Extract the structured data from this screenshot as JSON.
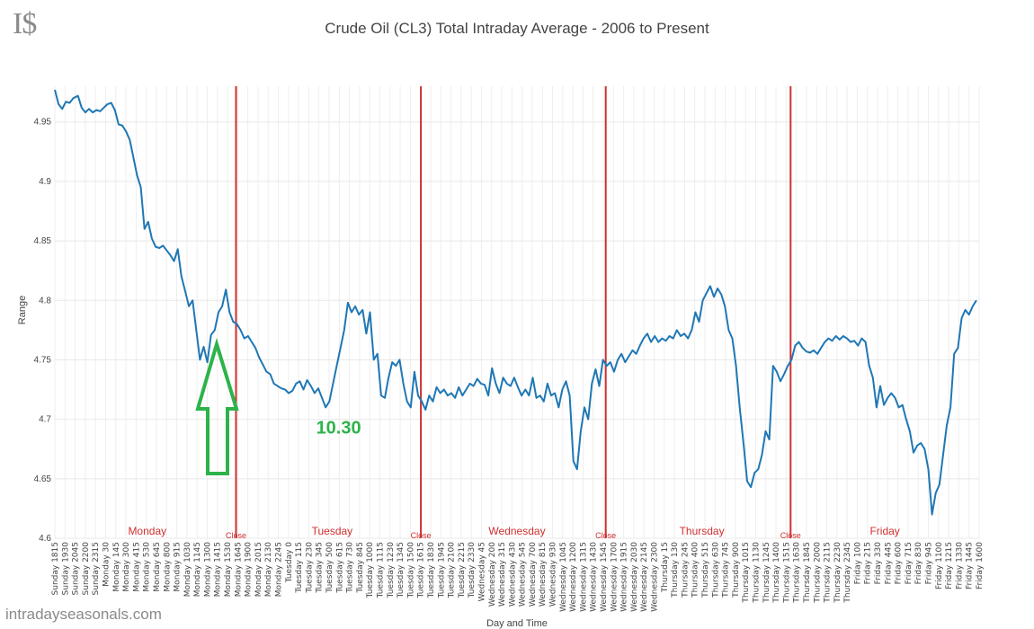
{
  "logo": "I$",
  "site": "intradayseasonals.com",
  "chart_data": {
    "type": "line",
    "title": "Crude Oil (CL3) Total Intraday Average - 2006 to Present",
    "xlabel": "Day and Time",
    "ylabel": "Range",
    "ylim": [
      4.6,
      4.98
    ],
    "yticks": [
      4.6,
      4.65,
      4.7,
      4.75,
      4.8,
      4.85,
      4.9,
      4.95
    ],
    "grid": true,
    "x_tick_labels": [
      "Sunday 1815",
      "Sunday 1930",
      "Sunday 2045",
      "Sunday 2200",
      "Sunday 2315",
      "Monday 30",
      "Monday 145",
      "Monday 300",
      "Monday 415",
      "Monday 530",
      "Monday 645",
      "Monday 800",
      "Monday 915",
      "Monday 1030",
      "Monday 1145",
      "Monday 1300",
      "Monday 1415",
      "Monday 1530",
      "Monday 1645",
      "Monday 1900",
      "Monday 2015",
      "Monday 2130",
      "Monday 2245",
      "Tuesday 0",
      "Tuesday 115",
      "Tuesday 230",
      "Tuesday 345",
      "Tuesday 500",
      "Tuesday 615",
      "Tuesday 730",
      "Tuesday 845",
      "Tuesday 1000",
      "Tuesday 1115",
      "Tuesday 1230",
      "Tuesday 1345",
      "Tuesday 1500",
      "Tuesday 1615",
      "Tuesday 1830",
      "Tuesday 1945",
      "Tuesday 2100",
      "Tuesday 2215",
      "Tuesday 2330",
      "Wednesday 45",
      "Wednesday 200",
      "Wednesday 315",
      "Wednesday 430",
      "Wednesday 545",
      "Wednesday 700",
      "Wednesday 815",
      "Wednesday 930",
      "Wednesday 1045",
      "Wednesday 1200",
      "Wednesday 1315",
      "Wednesday 1430",
      "Wednesday 1545",
      "Wednesday 1700",
      "Wednesday 1915",
      "Wednesday 2030",
      "Wednesday 2145",
      "Wednesday 2300",
      "Thursday 15",
      "Thursday 130",
      "Thursday 245",
      "Thursday 400",
      "Thursday 515",
      "Thursday 630",
      "Thursday 745",
      "Thursday 900",
      "Thursday 1015",
      "Thursday 1130",
      "Thursday 1245",
      "Thursday 1400",
      "Thursday 1515",
      "Thursday 1630",
      "Thursday 1845",
      "Thursday 2000",
      "Thursday 2115",
      "Thursday 2230",
      "Thursday 2345",
      "Friday 100",
      "Friday 215",
      "Friday 330",
      "Friday 445",
      "Friday 600",
      "Friday 715",
      "Friday 830",
      "Friday 945",
      "Friday 1100",
      "Friday 1215",
      "Friday 1330",
      "Friday 1445",
      "Friday 1600"
    ],
    "series": [
      {
        "color": "#1f77b4",
        "points": [
          [
            0.0,
            4.977
          ],
          [
            0.4,
            4.965
          ],
          [
            0.8,
            4.961
          ],
          [
            1.2,
            4.967
          ],
          [
            1.6,
            4.966
          ],
          [
            2.0,
            4.97
          ],
          [
            2.5,
            4.972
          ],
          [
            2.9,
            4.962
          ],
          [
            3.3,
            4.958
          ],
          [
            3.7,
            4.961
          ],
          [
            4.1,
            4.958
          ],
          [
            4.5,
            4.96
          ],
          [
            4.9,
            4.959
          ],
          [
            5.3,
            4.962
          ],
          [
            5.7,
            4.965
          ],
          [
            6.1,
            4.966
          ],
          [
            6.5,
            4.96
          ],
          [
            6.9,
            4.948
          ],
          [
            7.3,
            4.947
          ],
          [
            7.7,
            4.942
          ],
          [
            8.1,
            4.935
          ],
          [
            8.5,
            4.92
          ],
          [
            8.9,
            4.905
          ],
          [
            9.3,
            4.895
          ],
          [
            9.7,
            4.86
          ],
          [
            10.1,
            4.866
          ],
          [
            10.5,
            4.852
          ],
          [
            10.9,
            4.845
          ],
          [
            11.3,
            4.844
          ],
          [
            11.7,
            4.846
          ],
          [
            12.1,
            4.842
          ],
          [
            12.5,
            4.838
          ],
          [
            12.9,
            4.833
          ],
          [
            13.3,
            4.843
          ],
          [
            13.7,
            4.82
          ],
          [
            14.1,
            4.808
          ],
          [
            14.5,
            4.795
          ],
          [
            14.9,
            4.8
          ],
          [
            15.3,
            4.775
          ],
          [
            15.7,
            4.75
          ],
          [
            16.1,
            4.761
          ],
          [
            16.5,
            4.748
          ],
          [
            16.9,
            4.771
          ],
          [
            17.3,
            4.775
          ],
          [
            17.7,
            4.79
          ],
          [
            18.1,
            4.795
          ],
          [
            18.5,
            4.809
          ],
          [
            18.9,
            4.79
          ],
          [
            19.3,
            4.782
          ],
          [
            19.7,
            4.78
          ],
          [
            20.1,
            4.775
          ],
          [
            20.5,
            4.768
          ],
          [
            20.9,
            4.77
          ],
          [
            21.3,
            4.765
          ],
          [
            21.7,
            4.76
          ],
          [
            22.1,
            4.752
          ],
          [
            22.5,
            4.746
          ],
          [
            22.9,
            4.74
          ],
          [
            23.3,
            4.738
          ],
          [
            23.7,
            4.73
          ],
          [
            24.1,
            4.728
          ],
          [
            24.5,
            4.726
          ],
          [
            24.9,
            4.725
          ],
          [
            25.3,
            4.722
          ],
          [
            25.7,
            4.724
          ],
          [
            26.1,
            4.73
          ],
          [
            26.5,
            4.732
          ],
          [
            26.9,
            4.725
          ],
          [
            27.3,
            4.733
          ],
          [
            27.7,
            4.728
          ],
          [
            28.1,
            4.722
          ],
          [
            28.5,
            4.726
          ],
          [
            28.9,
            4.718
          ],
          [
            29.3,
            4.71
          ],
          [
            29.7,
            4.715
          ],
          [
            30.1,
            4.73
          ],
          [
            30.5,
            4.745
          ],
          [
            30.9,
            4.76
          ],
          [
            31.3,
            4.775
          ],
          [
            31.7,
            4.798
          ],
          [
            32.1,
            4.79
          ],
          [
            32.5,
            4.795
          ],
          [
            32.9,
            4.788
          ],
          [
            33.3,
            4.792
          ],
          [
            33.7,
            4.772
          ],
          [
            34.1,
            4.79
          ],
          [
            34.5,
            4.75
          ],
          [
            34.9,
            4.755
          ],
          [
            35.3,
            4.72
          ],
          [
            35.7,
            4.718
          ],
          [
            36.1,
            4.735
          ],
          [
            36.5,
            4.748
          ],
          [
            36.9,
            4.745
          ],
          [
            37.3,
            4.75
          ],
          [
            37.7,
            4.73
          ],
          [
            38.1,
            4.715
          ],
          [
            38.5,
            4.71
          ],
          [
            38.9,
            4.74
          ],
          [
            39.3,
            4.72
          ],
          [
            39.7,
            4.715
          ],
          [
            40.1,
            4.708
          ],
          [
            40.5,
            4.72
          ],
          [
            40.9,
            4.715
          ],
          [
            41.3,
            4.727
          ],
          [
            41.7,
            4.722
          ],
          [
            42.1,
            4.725
          ],
          [
            42.5,
            4.72
          ],
          [
            42.9,
            4.722
          ],
          [
            43.3,
            4.718
          ],
          [
            43.7,
            4.727
          ],
          [
            44.1,
            4.72
          ],
          [
            44.5,
            4.725
          ],
          [
            44.9,
            4.73
          ],
          [
            45.3,
            4.728
          ],
          [
            45.7,
            4.734
          ],
          [
            46.1,
            4.73
          ],
          [
            46.5,
            4.729
          ],
          [
            46.9,
            4.72
          ],
          [
            47.3,
            4.743
          ],
          [
            47.7,
            4.73
          ],
          [
            48.1,
            4.722
          ],
          [
            48.5,
            4.735
          ],
          [
            48.9,
            4.73
          ],
          [
            49.3,
            4.728
          ],
          [
            49.7,
            4.735
          ],
          [
            50.1,
            4.727
          ],
          [
            50.5,
            4.72
          ],
          [
            50.9,
            4.725
          ],
          [
            51.3,
            4.72
          ],
          [
            51.7,
            4.735
          ],
          [
            52.1,
            4.718
          ],
          [
            52.5,
            4.72
          ],
          [
            52.9,
            4.715
          ],
          [
            53.3,
            4.73
          ],
          [
            53.7,
            4.72
          ],
          [
            54.1,
            4.722
          ],
          [
            54.5,
            4.71
          ],
          [
            54.9,
            4.725
          ],
          [
            55.3,
            4.732
          ],
          [
            55.7,
            4.72
          ],
          [
            56.1,
            4.665
          ],
          [
            56.5,
            4.658
          ],
          [
            56.9,
            4.69
          ],
          [
            57.3,
            4.71
          ],
          [
            57.7,
            4.7
          ],
          [
            58.1,
            4.73
          ],
          [
            58.5,
            4.742
          ],
          [
            58.9,
            4.728
          ],
          [
            59.3,
            4.75
          ],
          [
            59.7,
            4.745
          ],
          [
            60.1,
            4.748
          ],
          [
            60.5,
            4.74
          ],
          [
            60.9,
            4.75
          ],
          [
            61.3,
            4.755
          ],
          [
            61.7,
            4.748
          ],
          [
            62.1,
            4.753
          ],
          [
            62.5,
            4.758
          ],
          [
            62.9,
            4.755
          ],
          [
            63.3,
            4.762
          ],
          [
            63.7,
            4.768
          ],
          [
            64.1,
            4.772
          ],
          [
            64.5,
            4.765
          ],
          [
            64.9,
            4.77
          ],
          [
            65.3,
            4.765
          ],
          [
            65.7,
            4.768
          ],
          [
            66.1,
            4.766
          ],
          [
            66.5,
            4.77
          ],
          [
            66.9,
            4.768
          ],
          [
            67.3,
            4.775
          ],
          [
            67.7,
            4.77
          ],
          [
            68.1,
            4.772
          ],
          [
            68.5,
            4.768
          ],
          [
            68.9,
            4.775
          ],
          [
            69.3,
            4.79
          ],
          [
            69.7,
            4.782
          ],
          [
            70.1,
            4.8
          ],
          [
            70.5,
            4.806
          ],
          [
            70.9,
            4.812
          ],
          [
            71.3,
            4.803
          ],
          [
            71.7,
            4.81
          ],
          [
            72.1,
            4.805
          ],
          [
            72.5,
            4.795
          ],
          [
            72.9,
            4.775
          ],
          [
            73.3,
            4.768
          ],
          [
            73.7,
            4.745
          ],
          [
            74.1,
            4.71
          ],
          [
            74.5,
            4.68
          ],
          [
            74.9,
            4.648
          ],
          [
            75.3,
            4.643
          ],
          [
            75.7,
            4.655
          ],
          [
            76.1,
            4.658
          ],
          [
            76.5,
            4.67
          ],
          [
            76.9,
            4.69
          ],
          [
            77.3,
            4.683
          ],
          [
            77.7,
            4.745
          ],
          [
            78.1,
            4.74
          ],
          [
            78.5,
            4.732
          ],
          [
            78.9,
            4.738
          ],
          [
            79.3,
            4.745
          ],
          [
            79.7,
            4.75
          ],
          [
            80.1,
            4.762
          ],
          [
            80.5,
            4.765
          ],
          [
            80.9,
            4.76
          ],
          [
            81.3,
            4.757
          ],
          [
            81.7,
            4.756
          ],
          [
            82.1,
            4.758
          ],
          [
            82.5,
            4.755
          ],
          [
            82.9,
            4.76
          ],
          [
            83.3,
            4.765
          ],
          [
            83.7,
            4.768
          ],
          [
            84.1,
            4.766
          ],
          [
            84.5,
            4.77
          ],
          [
            84.9,
            4.767
          ],
          [
            85.3,
            4.77
          ],
          [
            85.7,
            4.768
          ],
          [
            86.1,
            4.765
          ],
          [
            86.5,
            4.766
          ],
          [
            86.9,
            4.762
          ],
          [
            87.3,
            4.768
          ],
          [
            87.7,
            4.765
          ],
          [
            88.1,
            4.745
          ],
          [
            88.5,
            4.735
          ],
          [
            88.9,
            4.71
          ],
          [
            89.3,
            4.728
          ],
          [
            89.7,
            4.712
          ],
          [
            90.1,
            4.718
          ],
          [
            90.5,
            4.722
          ],
          [
            90.9,
            4.718
          ],
          [
            91.3,
            4.71
          ],
          [
            91.7,
            4.712
          ],
          [
            92.1,
            4.7
          ],
          [
            92.5,
            4.69
          ],
          [
            92.9,
            4.672
          ],
          [
            93.3,
            4.678
          ],
          [
            93.7,
            4.68
          ],
          [
            94.1,
            4.675
          ],
          [
            94.5,
            4.658
          ],
          [
            94.9,
            4.62
          ],
          [
            95.3,
            4.638
          ],
          [
            95.7,
            4.645
          ],
          [
            96.1,
            4.67
          ],
          [
            96.5,
            4.695
          ],
          [
            96.9,
            4.71
          ],
          [
            97.3,
            4.755
          ],
          [
            97.7,
            4.76
          ],
          [
            98.1,
            4.785
          ],
          [
            98.5,
            4.792
          ],
          [
            98.9,
            4.788
          ],
          [
            99.3,
            4.795
          ],
          [
            99.7,
            4.8
          ]
        ]
      }
    ],
    "day_labels": [
      {
        "text": "Monday",
        "x": 10.0
      },
      {
        "text": "Tuesday",
        "x": 30.0
      },
      {
        "text": "Wednesday",
        "x": 50.0
      },
      {
        "text": "Thursday",
        "x": 70.0
      },
      {
        "text": "Friday",
        "x": 89.8
      }
    ],
    "close_lines": [
      {
        "text": "Close",
        "x": 19.6
      },
      {
        "text": "Close",
        "x": 39.6
      },
      {
        "text": "Close",
        "x": 59.6
      },
      {
        "text": "Close",
        "x": 79.6
      }
    ],
    "annotations": [
      {
        "text": "10.30",
        "x": 30.7,
        "y": 4.688,
        "color": "#2db34a"
      }
    ]
  }
}
